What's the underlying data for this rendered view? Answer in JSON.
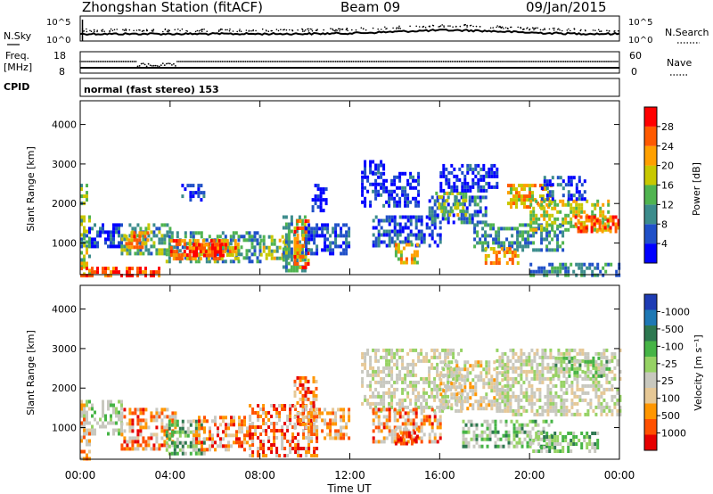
{
  "header": {
    "title": "Zhongshan Station (fitACF)",
    "beam": "Beam 09",
    "date": "09/Jan/2015"
  },
  "strips": {
    "nsky_label": "N.Sky",
    "nsky_ticks": [
      "10^5",
      "10^0"
    ],
    "nsearch_label": "N.Search",
    "nsearch_ticks": [
      "10^5",
      "10^0"
    ],
    "freq_label_1": "Freq.",
    "freq_label_2": "[MHz]",
    "freq_ticks": [
      "18",
      "8"
    ],
    "nave_label": "Nave",
    "nave_ticks": [
      "60",
      "0"
    ],
    "cpid_label": "CPID",
    "cpid_text": "normal (fast stereo) 153"
  },
  "colors": {
    "power_scale": [
      "#0000ff",
      "#2050c8",
      "#3c8c8c",
      "#50b450",
      "#c8c800",
      "#ffa000",
      "#ff5a00",
      "#ff0000"
    ],
    "velocity_scale": [
      "#e60000",
      "#ff5000",
      "#ff9600",
      "#e6c896",
      "#c8c8be",
      "#96d264",
      "#46b446",
      "#2d7850",
      "#1e78b4",
      "#1e3cb4"
    ],
    "velocity_noise": "#c8c8c0"
  },
  "chart_data": [
    {
      "type": "heatmap",
      "panel": "power",
      "ylabel": "Slant Range [km]",
      "yticks": [
        "1000",
        "2000",
        "3000",
        "4000"
      ],
      "ylim": [
        200,
        4600
      ],
      "xlim": [
        0,
        24
      ],
      "colorbar_label": "Power [dB]",
      "colorbar_ticks": [
        "4",
        "8",
        "12",
        "16",
        "20",
        "24",
        "28"
      ],
      "colorbar_range": [
        0,
        32
      ],
      "regions": [
        {
          "t": [
            0.0,
            1.8
          ],
          "r": [
            900,
            1500
          ],
          "level": 0.15
        },
        {
          "t": [
            0.0,
            0.4
          ],
          "r": [
            200,
            1700
          ],
          "level": 0.5
        },
        {
          "t": [
            0.0,
            0.3
          ],
          "r": [
            2000,
            2500
          ],
          "level": 0.4
        },
        {
          "t": [
            1.8,
            4.0
          ],
          "r": [
            700,
            1500
          ],
          "level": 0.4
        },
        {
          "t": [
            2.0,
            3.0
          ],
          "r": [
            900,
            1300
          ],
          "level": 0.75
        },
        {
          "t": [
            3.8,
            7.0
          ],
          "r": [
            500,
            1300
          ],
          "level": 0.35
        },
        {
          "t": [
            4.0,
            7.0
          ],
          "r": [
            600,
            1100
          ],
          "level": 0.75
        },
        {
          "t": [
            5.0,
            6.5
          ],
          "r": [
            700,
            1000
          ],
          "level": 0.9
        },
        {
          "t": [
            7.0,
            8.0
          ],
          "r": [
            500,
            1300
          ],
          "level": 0.3
        },
        {
          "t": [
            8.0,
            9.3
          ],
          "r": [
            600,
            1200
          ],
          "level": 0.5
        },
        {
          "t": [
            9.0,
            10.0
          ],
          "r": [
            300,
            1700
          ],
          "level": 0.35
        },
        {
          "t": [
            9.5,
            10.1
          ],
          "r": [
            400,
            1600
          ],
          "level": 0.75
        },
        {
          "t": [
            10.0,
            12.0
          ],
          "r": [
            700,
            1500
          ],
          "level": 0.2
        },
        {
          "t": [
            10.3,
            10.9
          ],
          "r": [
            1800,
            2500
          ],
          "level": 0.1
        },
        {
          "t": [
            4.5,
            5.5
          ],
          "r": [
            2100,
            2500
          ],
          "level": 0.1
        },
        {
          "t": [
            12.5,
            15.0
          ],
          "r": [
            1900,
            2800
          ],
          "level": 0.1
        },
        {
          "t": [
            12.5,
            13.5
          ],
          "r": [
            2800,
            3100
          ],
          "level": 0.1
        },
        {
          "t": [
            13.0,
            16.0
          ],
          "r": [
            900,
            1700
          ],
          "level": 0.2
        },
        {
          "t": [
            14.0,
            15.0
          ],
          "r": [
            500,
            1000
          ],
          "level": 0.6
        },
        {
          "t": [
            15.5,
            18.0
          ],
          "r": [
            1500,
            2200
          ],
          "level": 0.25
        },
        {
          "t": [
            15.8,
            17.2
          ],
          "r": [
            1700,
            2300
          ],
          "level": 0.5
        },
        {
          "t": [
            16.0,
            18.5
          ],
          "r": [
            2300,
            3000
          ],
          "level": 0.1
        },
        {
          "t": [
            17.5,
            21.5
          ],
          "r": [
            800,
            1500
          ],
          "level": 0.3
        },
        {
          "t": [
            18.0,
            19.5
          ],
          "r": [
            500,
            900
          ],
          "level": 0.7
        },
        {
          "t": [
            19.0,
            21.0
          ],
          "r": [
            1900,
            2500
          ],
          "level": 0.65
        },
        {
          "t": [
            20.0,
            23.5
          ],
          "r": [
            1300,
            2100
          ],
          "level": 0.55
        },
        {
          "t": [
            22.0,
            24.0
          ],
          "r": [
            1300,
            1700
          ],
          "level": 0.8
        },
        {
          "t": [
            20.5,
            22.5
          ],
          "r": [
            2100,
            2700
          ],
          "level": 0.15
        },
        {
          "t": [
            20.0,
            24.0
          ],
          "r": [
            200,
            500
          ],
          "level": 0.3
        },
        {
          "t": [
            0.0,
            3.5
          ],
          "r": [
            200,
            400
          ],
          "level": 0.85
        }
      ]
    },
    {
      "type": "heatmap",
      "panel": "velocity",
      "ylabel": "Slant Range [km]",
      "yticks": [
        "1000",
        "2000",
        "3000",
        "4000"
      ],
      "ylim": [
        200,
        4600
      ],
      "xlim": [
        0,
        24
      ],
      "xticks": [
        "00:00",
        "04:00",
        "08:00",
        "12:00",
        "16:00",
        "20:00",
        "00:00"
      ],
      "xlabel": "Time UT",
      "colorbar_label": "Velocity [m s⁻¹]",
      "colorbar_ticks": [
        "-1000",
        "-500",
        "-100",
        "-25",
        "25",
        "100",
        "500",
        "1000"
      ],
      "regions": [
        {
          "t": [
            0.0,
            1.8
          ],
          "r": [
            800,
            1700
          ],
          "level": 0.55
        },
        {
          "t": [
            0.0,
            0.4
          ],
          "r": [
            200,
            1700
          ],
          "level": 0.3
        },
        {
          "t": [
            1.8,
            4.2
          ],
          "r": [
            500,
            1500
          ],
          "level": 0.2
        },
        {
          "t": [
            3.8,
            5.5
          ],
          "r": [
            300,
            1200
          ],
          "level": 0.65
        },
        {
          "t": [
            5.0,
            7.5
          ],
          "r": [
            400,
            1300
          ],
          "level": 0.2
        },
        {
          "t": [
            7.5,
            10.5
          ],
          "r": [
            300,
            1600
          ],
          "level": 0.15
        },
        {
          "t": [
            9.5,
            10.5
          ],
          "r": [
            1000,
            2300
          ],
          "level": 0.2
        },
        {
          "t": [
            10.0,
            12.0
          ],
          "r": [
            700,
            1500
          ],
          "level": 0.25
        },
        {
          "t": [
            12.5,
            17.0
          ],
          "r": [
            1400,
            3000
          ],
          "level": 0.45
        },
        {
          "t": [
            13.0,
            16.0
          ],
          "r": [
            600,
            1500
          ],
          "level": 0.2
        },
        {
          "t": [
            14.0,
            15.0
          ],
          "r": [
            600,
            1000
          ],
          "level": 0.1
        },
        {
          "t": [
            16.0,
            19.0
          ],
          "r": [
            1500,
            2700
          ],
          "level": 0.4
        },
        {
          "t": [
            17.0,
            21.0
          ],
          "r": [
            500,
            1200
          ],
          "level": 0.6
        },
        {
          "t": [
            18.5,
            24.0
          ],
          "r": [
            1300,
            3000
          ],
          "level": 0.45
        },
        {
          "t": [
            20.0,
            23.0
          ],
          "r": [
            400,
            900
          ],
          "level": 0.65
        },
        {
          "t": [
            21.0,
            23.5
          ],
          "r": [
            2300,
            2800
          ],
          "level": 0.6
        }
      ]
    }
  ]
}
